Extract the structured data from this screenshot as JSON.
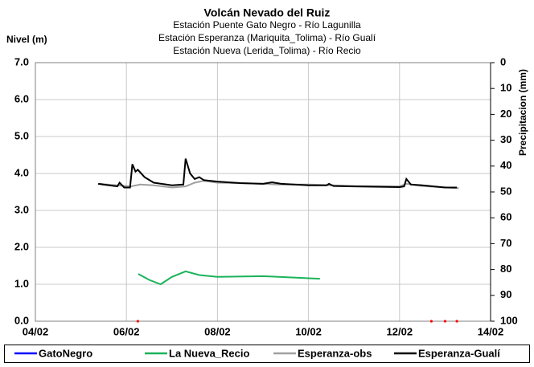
{
  "chart_data": {
    "type": "line",
    "title": "Volcán Nevado del Ruiz",
    "subtitle": [
      "Estación Puente Gato Negro - Río Lagunilla",
      "Estación Esperanza (Mariquita_Tolima) - Río Gualí",
      "Estación Nueva (Lerida_Tolima) - Río Recio"
    ],
    "y_label": "Nivel (m)",
    "y2_label": "Precipitacion (mm)",
    "xlim": [
      4,
      14
    ],
    "xticks": [
      {
        "value": 4,
        "label": "04/02"
      },
      {
        "value": 6,
        "label": "06/02"
      },
      {
        "value": 8,
        "label": "08/02"
      },
      {
        "value": 10,
        "label": "10/02"
      },
      {
        "value": 12,
        "label": "12/02"
      },
      {
        "value": 14,
        "label": "14/02"
      }
    ],
    "ylim": [
      0,
      7
    ],
    "yticks": [
      {
        "value": 0,
        "label": "0.0"
      },
      {
        "value": 1,
        "label": "1.0"
      },
      {
        "value": 2,
        "label": "2.0"
      },
      {
        "value": 3,
        "label": "3.0"
      },
      {
        "value": 4,
        "label": "4.0"
      },
      {
        "value": 5,
        "label": "5.0"
      },
      {
        "value": 6,
        "label": "6.0"
      },
      {
        "value": 7,
        "label": "7.0"
      }
    ],
    "y2lim": [
      100,
      0
    ],
    "y2ticks": [
      0,
      10,
      20,
      30,
      40,
      50,
      60,
      70,
      80,
      90,
      100
    ],
    "grid": true,
    "series": [
      {
        "name": "GatoNegro",
        "color": "#0000ff",
        "x": [],
        "values": []
      },
      {
        "name": "La Nueva_Recio",
        "color": "#1bb35a",
        "x": [
          6.26,
          6.5,
          6.75,
          7.0,
          7.3,
          7.6,
          8.0,
          9.0,
          10.25
        ],
        "values": [
          1.28,
          1.12,
          1.0,
          1.2,
          1.35,
          1.25,
          1.2,
          1.22,
          1.15
        ]
      },
      {
        "name": "Esperanza-obs",
        "color": "#a0a0a0",
        "x": [
          5.4,
          6.1,
          6.3,
          6.6,
          7.0,
          7.3,
          7.5,
          7.7,
          8.0,
          9.0,
          9.3,
          10.0,
          11.0,
          12.0,
          12.15,
          12.5,
          13.3
        ],
        "values": [
          3.72,
          3.65,
          3.7,
          3.68,
          3.62,
          3.65,
          3.75,
          3.8,
          3.75,
          3.72,
          3.7,
          3.7,
          3.66,
          3.65,
          3.72,
          3.66,
          3.6
        ]
      },
      {
        "name": "Esperanza-Gualí",
        "color": "#000000",
        "x": [
          5.38,
          5.8,
          5.85,
          5.95,
          6.08,
          6.13,
          6.2,
          6.25,
          6.4,
          6.6,
          7.0,
          7.25,
          7.3,
          7.4,
          7.5,
          7.6,
          7.7,
          8.0,
          8.5,
          9.0,
          9.2,
          9.4,
          10.0,
          10.4,
          10.45,
          10.55,
          11.0,
          12.0,
          12.1,
          12.15,
          12.25,
          12.5,
          13.0,
          13.26
        ],
        "values": [
          3.72,
          3.65,
          3.75,
          3.62,
          3.62,
          4.25,
          4.05,
          4.1,
          3.9,
          3.75,
          3.68,
          3.7,
          4.4,
          4.0,
          3.85,
          3.9,
          3.82,
          3.78,
          3.74,
          3.72,
          3.76,
          3.72,
          3.68,
          3.68,
          3.72,
          3.66,
          3.65,
          3.63,
          3.65,
          3.85,
          3.7,
          3.68,
          3.62,
          3.62
        ]
      },
      {
        "color": "#ff0000",
        "x": [
          6.25,
          12.7,
          13.0,
          13.26
        ],
        "values": [
          0,
          0,
          0,
          0
        ]
      }
    ]
  }
}
